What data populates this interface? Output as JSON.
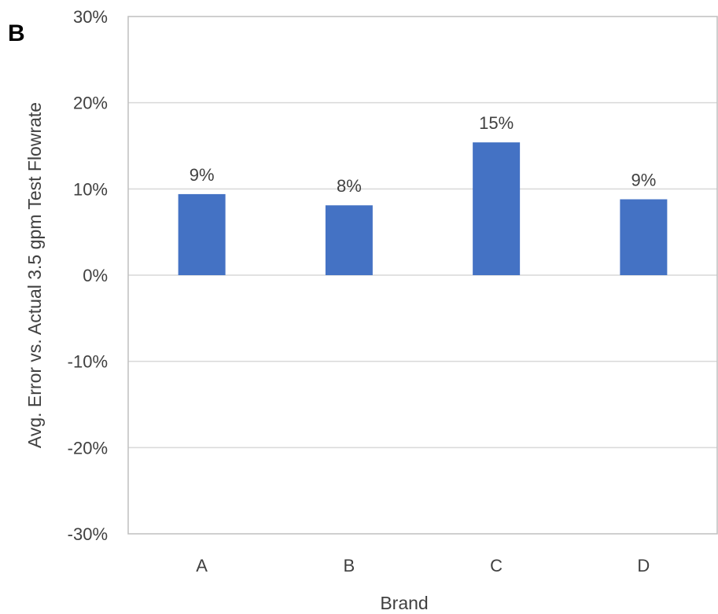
{
  "panel_label": "B",
  "chart_data": {
    "type": "bar",
    "categories": [
      "A",
      "B",
      "C",
      "D"
    ],
    "values": [
      9.4,
      8.1,
      15.4,
      8.8
    ],
    "data_labels": [
      "9%",
      "8%",
      "15%",
      "9%"
    ],
    "xlabel": "Brand",
    "ylabel": "Avg. Error vs. Actual 3.5 gpm Test Flowrate",
    "ylim": [
      -30,
      30
    ],
    "yticks": [
      30,
      20,
      10,
      0,
      -10,
      -20,
      -30
    ],
    "ytick_labels": [
      "30%",
      "20%",
      "10%",
      "0%",
      "-10%",
      "-20%",
      "-30%"
    ],
    "grid": true,
    "legend": "none",
    "bar_color": "#4472C4",
    "grid_color": "#d9d9d9",
    "border_color": "#bfbfbf"
  }
}
